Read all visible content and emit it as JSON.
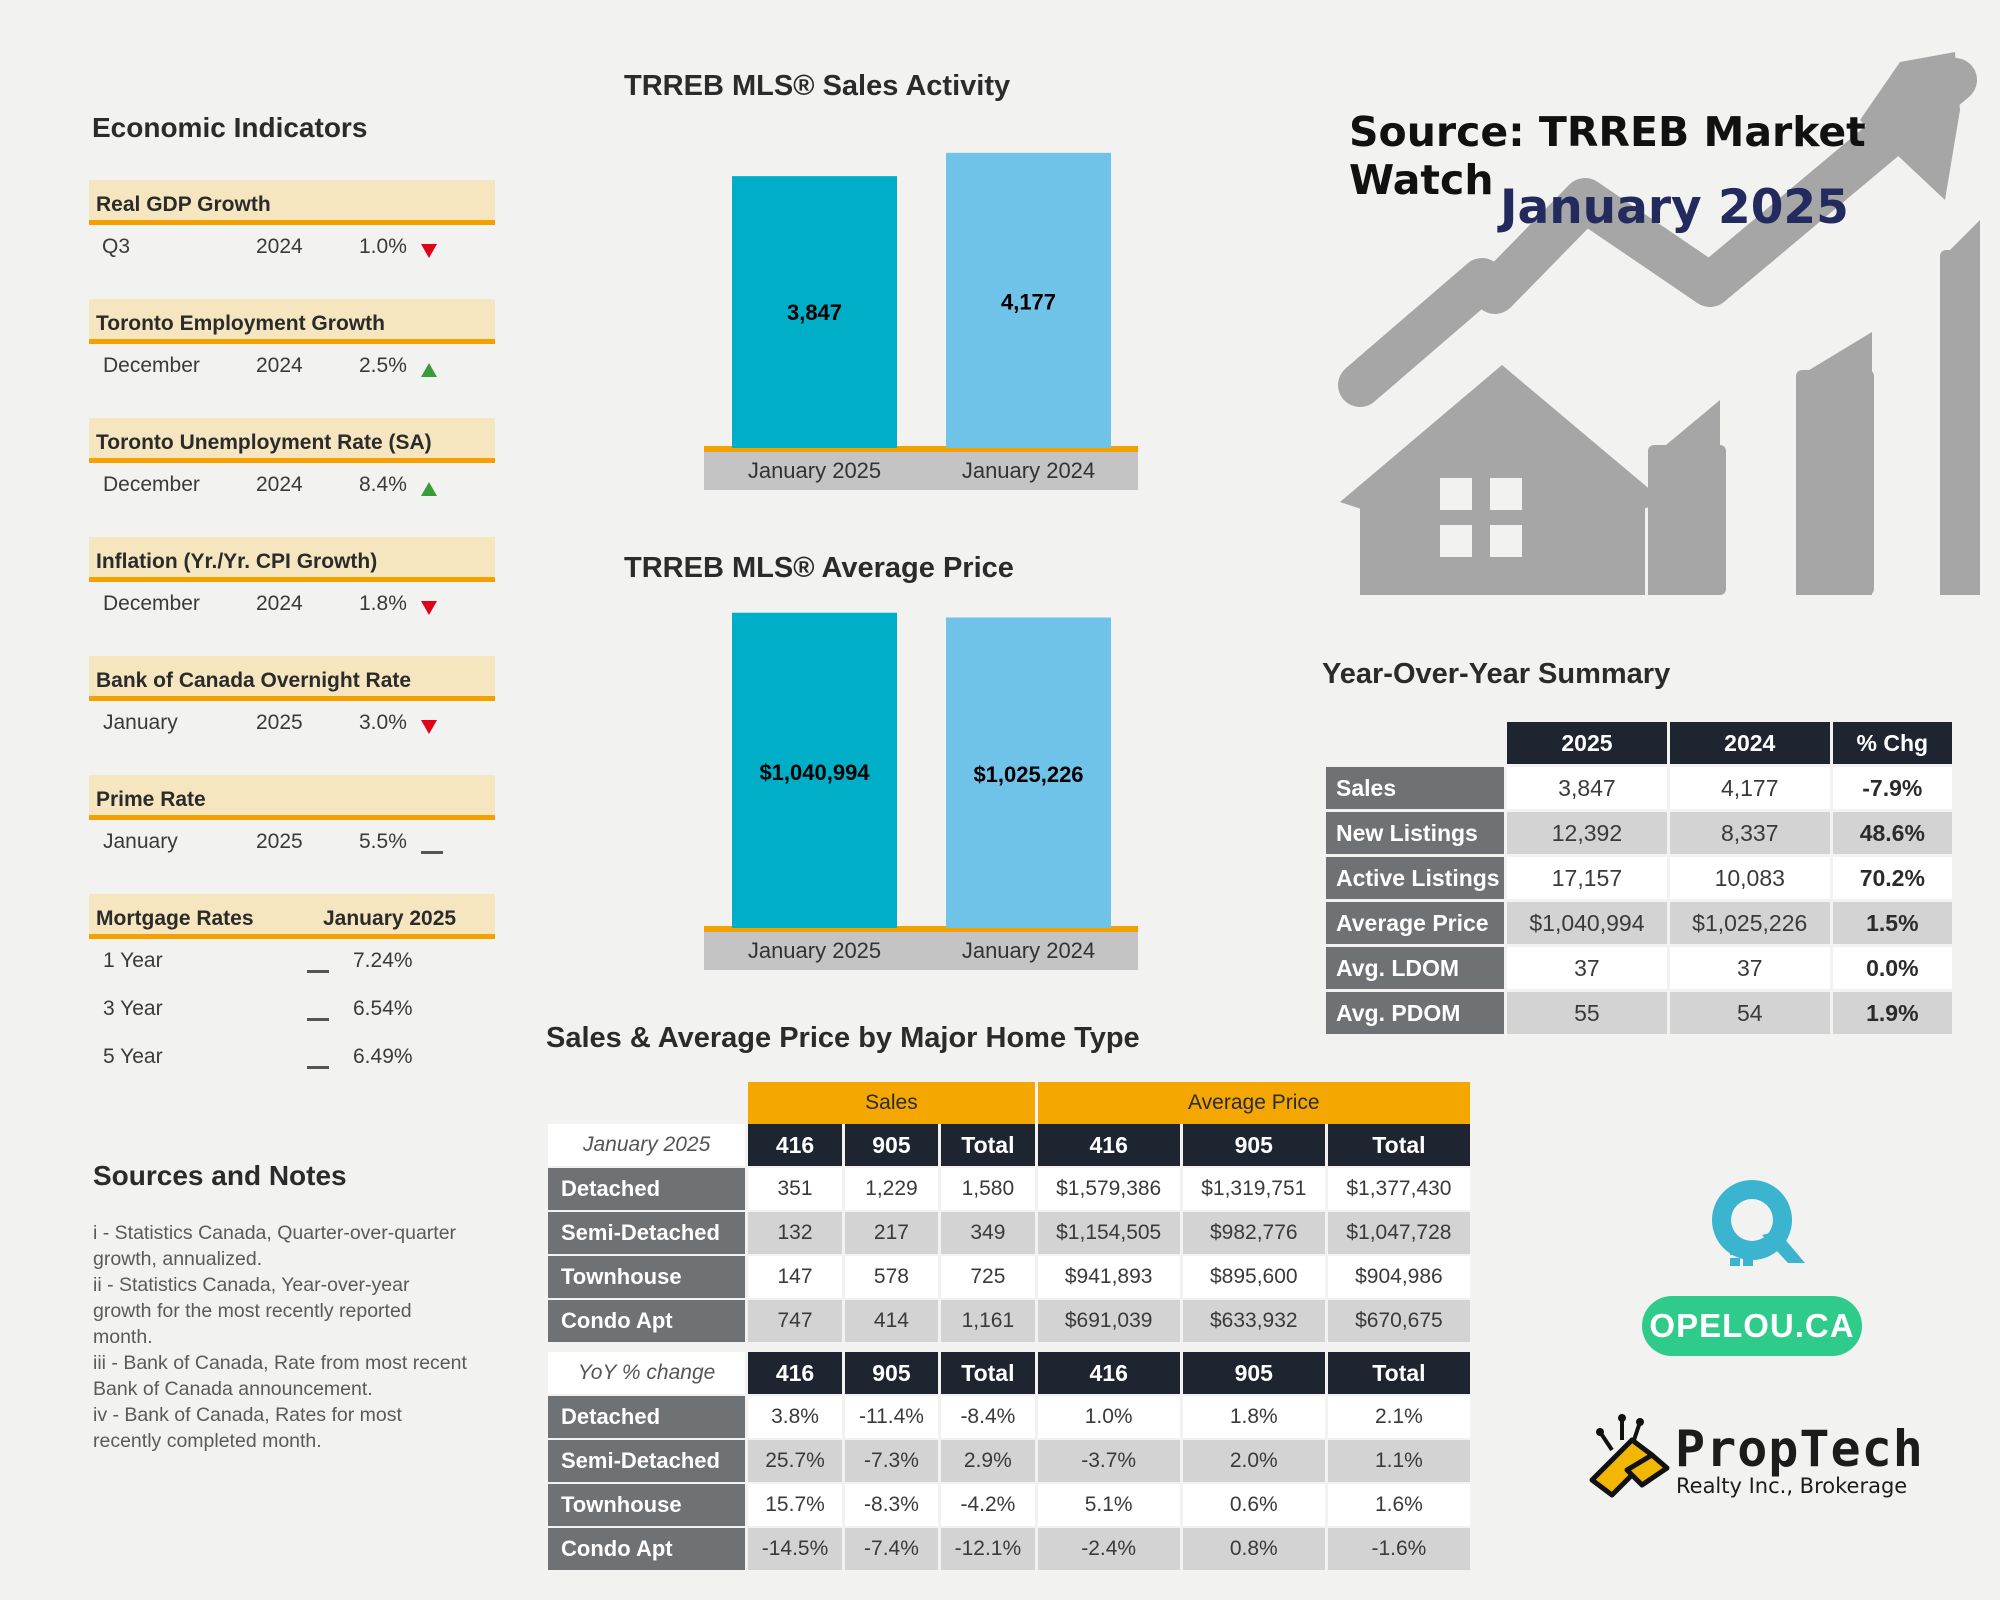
{
  "source": {
    "line1": "Source: TRREB Market Watch",
    "line2": "January 2025"
  },
  "economic": {
    "title": "Economic Indicators",
    "items": [
      {
        "label": "Real GDP Growth",
        "period": "Q3",
        "year": "2024",
        "value": "1.0%",
        "trend": "down"
      },
      {
        "label": "Toronto Employment Growth",
        "period": "December",
        "year": "2024",
        "value": "2.5%",
        "trend": "up"
      },
      {
        "label": "Toronto Unemployment Rate (SA)",
        "period": "December",
        "year": "2024",
        "value": "8.4%",
        "trend": "up"
      },
      {
        "label": "Inflation (Yr./Yr. CPI Growth)",
        "period": "December",
        "year": "2024",
        "value": "1.8%",
        "trend": "down"
      },
      {
        "label": "Bank of Canada Overnight Rate",
        "period": "January",
        "year": "2025",
        "value": "3.0%",
        "trend": "down"
      },
      {
        "label": "Prime Rate",
        "period": "January",
        "year": "2025",
        "value": "5.5%",
        "trend": "flat"
      }
    ],
    "mortgage": {
      "label": "Mortgage Rates",
      "period": "January 2025",
      "rows": [
        {
          "term": "1 Year",
          "value": "7.24%"
        },
        {
          "term": "3 Year",
          "value": "6.54%"
        },
        {
          "term": "5 Year",
          "value": "6.49%"
        }
      ]
    }
  },
  "notes": {
    "title": "Sources and Notes",
    "lines": [
      "i - Statistics Canada, Quarter-over-quarter",
      "growth, annualized.",
      "ii - Statistics Canada, Year-over-year",
      "growth for the most recently reported",
      "month.",
      "iii - Bank of Canada, Rate from most recent",
      "Bank of Canada announcement.",
      "iv - Bank of Canada, Rates for most",
      "recently completed month."
    ]
  },
  "chart_data": [
    {
      "type": "bar",
      "title": "TRREB MLS® Sales Activity",
      "categories": [
        "January 2025",
        "January 2024"
      ],
      "values": [
        3847,
        4177
      ],
      "data_labels": [
        "3,847",
        "4,177"
      ],
      "ylim": [
        0,
        4500
      ]
    },
    {
      "type": "bar",
      "title": "TRREB MLS® Average Price",
      "categories": [
        "January 2025",
        "January 2024"
      ],
      "values": [
        1040994,
        1025226
      ],
      "data_labels": [
        "$1,040,994",
        "$1,025,226"
      ],
      "ylim": [
        0,
        1050000
      ]
    },
    {
      "type": "table",
      "title": "Year-Over-Year Summary",
      "columns": [
        "2025",
        "2024",
        "% Chg"
      ],
      "rows": [
        {
          "label": "Sales",
          "values": [
            "3,847",
            "4,177",
            "-7.9%"
          ]
        },
        {
          "label": "New Listings",
          "values": [
            "12,392",
            "8,337",
            "48.6%"
          ]
        },
        {
          "label": "Active Listings",
          "values": [
            "17,157",
            "10,083",
            "70.2%"
          ]
        },
        {
          "label": "Average Price",
          "values": [
            "$1,040,994",
            "$1,025,226",
            "1.5%"
          ]
        },
        {
          "label": "Avg. LDOM",
          "values": [
            "37",
            "37",
            "0.0%"
          ]
        },
        {
          "label": "Avg. PDOM",
          "values": [
            "55",
            "54",
            "1.9%"
          ]
        }
      ]
    },
    {
      "type": "table",
      "title": "Sales & Average Price by Major Home Type",
      "groups": [
        "Sales",
        "Average Price"
      ],
      "columns": [
        "416",
        "905",
        "Total",
        "416",
        "905",
        "Total"
      ],
      "blocks": [
        {
          "label": "January 2025",
          "rows": [
            {
              "label": "Detached",
              "values": [
                "351",
                "1,229",
                "1,580",
                "$1,579,386",
                "$1,319,751",
                "$1,377,430"
              ]
            },
            {
              "label": "Semi-Detached",
              "values": [
                "132",
                "217",
                "349",
                "$1,154,505",
                "$982,776",
                "$1,047,728"
              ]
            },
            {
              "label": "Townhouse",
              "values": [
                "147",
                "578",
                "725",
                "$941,893",
                "$895,600",
                "$904,986"
              ]
            },
            {
              "label": "Condo Apt",
              "values": [
                "747",
                "414",
                "1,161",
                "$691,039",
                "$633,932",
                "$670,675"
              ]
            }
          ]
        },
        {
          "label": "YoY % change",
          "rows": [
            {
              "label": "Detached",
              "values": [
                "3.8%",
                "-11.4%",
                "-8.4%",
                "1.0%",
                "1.8%",
                "2.1%"
              ]
            },
            {
              "label": "Semi-Detached",
              "values": [
                "25.7%",
                "-7.3%",
                "2.9%",
                "-3.7%",
                "2.0%",
                "1.1%"
              ]
            },
            {
              "label": "Townhouse",
              "values": [
                "15.7%",
                "-8.3%",
                "-4.2%",
                "5.1%",
                "0.6%",
                "1.6%"
              ]
            },
            {
              "label": "Condo Apt",
              "values": [
                "-14.5%",
                "-7.4%",
                "-12.1%",
                "-2.4%",
                "0.8%",
                "-1.6%"
              ]
            }
          ]
        }
      ]
    }
  ],
  "branding": {
    "opelou": "OPELOU.CA",
    "proptech_name": "PropTech",
    "proptech_sub": "Realty Inc., Brokerage"
  },
  "colors": {
    "bar_2025": "#00aec7",
    "bar_2024": "#70c3e8",
    "accent_orange": "#f4a100",
    "dark_header": "#1f2530",
    "row_header": "#6e7275",
    "opelou_green": "#2ecb8b",
    "house_gray": "#a6a6a6",
    "navy": "#232a5e"
  }
}
